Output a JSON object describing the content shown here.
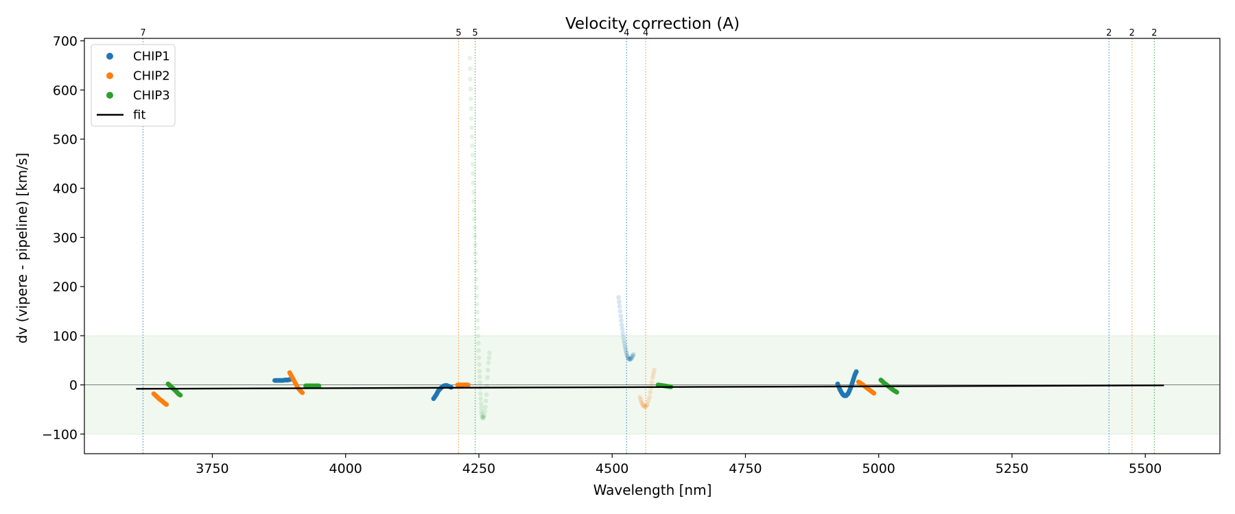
{
  "chart_data": {
    "type": "scatter",
    "title": "Velocity correction (A)",
    "xlabel": "Wavelength [nm]",
    "ylabel": "dv (vipere - pipeline) [km/s]",
    "xlim": [
      3510,
      5640
    ],
    "ylim": [
      -140,
      705
    ],
    "xticks": [
      3750,
      4000,
      4250,
      4500,
      4750,
      5000,
      5250,
      5500
    ],
    "yticks": [
      -100,
      0,
      100,
      200,
      300,
      400,
      500,
      600,
      700
    ],
    "yticklabels": [
      "−100",
      "0",
      "100",
      "200",
      "300",
      "400",
      "500",
      "600",
      "700"
    ],
    "grid": false,
    "legend_position": "top-left",
    "band": {
      "y": [
        -100,
        100
      ],
      "color": "#2ca02c"
    },
    "zero_line": 0,
    "colors": {
      "CHIP1": "#1f77b4",
      "CHIP2": "#ff7f0e",
      "CHIP3": "#2ca02c",
      "fit": "#000000"
    },
    "legend": [
      {
        "label": "CHIP1",
        "kind": "point",
        "color": "#1f77b4"
      },
      {
        "label": "CHIP2",
        "kind": "point",
        "color": "#ff7f0e"
      },
      {
        "label": "CHIP3",
        "kind": "point",
        "color": "#2ca02c"
      },
      {
        "label": "fit",
        "kind": "line",
        "color": "#000000"
      }
    ],
    "vlines": [
      {
        "x": 3620,
        "label": "7",
        "color": "#1f77b4"
      },
      {
        "x": 4212,
        "label": "5",
        "color": "#ff7f0e"
      },
      {
        "x": 4243,
        "label": "5",
        "color": "#2ca02c"
      },
      {
        "x": 4527,
        "label": "4",
        "color": "#1f77b4"
      },
      {
        "x": 4563,
        "label": "4",
        "color": "#ff7f0e"
      },
      {
        "x": 5432,
        "label": "2",
        "color": "#1f77b4"
      },
      {
        "x": 5475,
        "label": "2",
        "color": "#ff7f0e"
      },
      {
        "x": 5517,
        "label": "2",
        "color": "#2ca02c"
      }
    ],
    "fit": {
      "x": [
        3607,
        5535
      ],
      "y": [
        -8,
        -1
      ]
    },
    "series": [
      {
        "name": "CHIP1",
        "segments": [
          {
            "alpha": 1,
            "points": [
              [
                3867,
                9
              ],
              [
                3872,
                9
              ],
              [
                3877,
                9
              ],
              [
                3882,
                9
              ],
              [
                3887,
                10
              ],
              [
                3892,
                10
              ],
              [
                3896,
                11
              ]
            ]
          },
          {
            "alpha": 1,
            "points": [
              [
                4165,
                -28
              ],
              [
                4170,
                -20
              ],
              [
                4174,
                -12
              ],
              [
                4179,
                -6
              ],
              [
                4184,
                -2
              ],
              [
                4189,
                -1
              ],
              [
                4194,
                -3
              ],
              [
                4198,
                -5
              ]
            ]
          },
          {
            "alpha": 0.18,
            "points": [
              [
                4512,
                178
              ],
              [
                4514,
                160
              ],
              [
                4516,
                140
              ],
              [
                4518,
                122
              ],
              [
                4520,
                105
              ],
              [
                4522,
                90
              ],
              [
                4524,
                78
              ],
              [
                4526,
                68
              ],
              [
                4528,
                60
              ],
              [
                4530,
                55
              ],
              [
                4532,
                52
              ],
              [
                4534,
                52
              ],
              [
                4536,
                54
              ],
              [
                4538,
                58
              ],
              [
                4540,
                62
              ]
            ]
          },
          {
            "alpha": 1,
            "points": [
              [
                4923,
                2
              ],
              [
                4927,
                -9
              ],
              [
                4931,
                -17
              ],
              [
                4935,
                -22
              ],
              [
                4939,
                -22
              ],
              [
                4943,
                -17
              ],
              [
                4947,
                -7
              ],
              [
                4951,
                6
              ],
              [
                4955,
                20
              ],
              [
                4958,
                27
              ]
            ]
          }
        ]
      },
      {
        "name": "CHIP2",
        "segments": [
          {
            "alpha": 1,
            "points": [
              [
                3640,
                -18
              ],
              [
                3644,
                -22
              ],
              [
                3648,
                -26
              ],
              [
                3652,
                -30
              ],
              [
                3656,
                -33
              ],
              [
                3660,
                -37
              ],
              [
                3664,
                -40
              ]
            ]
          },
          {
            "alpha": 1,
            "points": [
              [
                3895,
                25
              ],
              [
                3900,
                15
              ],
              [
                3905,
                5
              ],
              [
                3910,
                -5
              ],
              [
                3915,
                -12
              ],
              [
                3919,
                -16
              ]
            ]
          },
          {
            "alpha": 1,
            "points": [
              [
                4210,
                0
              ],
              [
                4215,
                0
              ],
              [
                4220,
                0
              ],
              [
                4225,
                0
              ],
              [
                4230,
                0
              ]
            ]
          },
          {
            "alpha": 0.2,
            "points": [
              [
                4552,
                -25
              ],
              [
                4555,
                -35
              ],
              [
                4558,
                -42
              ],
              [
                4562,
                -45
              ],
              [
                4566,
                -40
              ],
              [
                4570,
                -25
              ],
              [
                4573,
                -5
              ],
              [
                4576,
                15
              ],
              [
                4579,
                30
              ]
            ]
          },
          {
            "alpha": 1,
            "points": [
              [
                4962,
                6
              ],
              [
                4968,
                2
              ],
              [
                4974,
                -3
              ],
              [
                4980,
                -8
              ],
              [
                4986,
                -13
              ],
              [
                4991,
                -17
              ]
            ]
          }
        ]
      },
      {
        "name": "CHIP3",
        "segments": [
          {
            "alpha": 1,
            "points": [
              [
                3667,
                2
              ],
              [
                3672,
                -3
              ],
              [
                3677,
                -8
              ],
              [
                3682,
                -13
              ],
              [
                3686,
                -18
              ],
              [
                3690,
                -21
              ]
            ]
          },
          {
            "alpha": 1,
            "points": [
              [
                3925,
                -2
              ],
              [
                3930,
                -2
              ],
              [
                3935,
                -2
              ],
              [
                3940,
                -2
              ],
              [
                3945,
                -2
              ],
              [
                3950,
                -2
              ]
            ]
          },
          {
            "alpha": 0.12,
            "points": [
              [
                4233,
                665
              ],
              [
                4234,
                622
              ],
              [
                4235,
                582
              ],
              [
                4236,
                542
              ],
              [
                4237,
                505
              ],
              [
                4238,
                468
              ],
              [
                4239,
                430
              ],
              [
                4240,
                392
              ],
              [
                4241,
                355
              ],
              [
                4242,
                320
              ],
              [
                4243,
                285
              ],
              [
                4244,
                250
              ],
              [
                4245,
                215
              ],
              [
                4246,
                180
              ],
              [
                4247,
                148
              ],
              [
                4248,
                115
              ],
              [
                4249,
                85
              ],
              [
                4250,
                55
              ],
              [
                4251,
                28
              ],
              [
                4252,
                5
              ],
              [
                4253,
                -18
              ],
              [
                4254,
                -38
              ],
              [
                4255,
                -55
              ],
              [
                4256,
                -65
              ],
              [
                4258,
                -68
              ],
              [
                4260,
                -62
              ],
              [
                4262,
                -45
              ],
              [
                4264,
                -20
              ],
              [
                4266,
                15
              ],
              [
                4268,
                45
              ],
              [
                4270,
                65
              ]
            ]
          },
          {
            "alpha": 1,
            "points": [
              [
                4586,
                0
              ],
              [
                4592,
                -1
              ],
              [
                4598,
                -2
              ],
              [
                4604,
                -3
              ],
              [
                4610,
                -4
              ]
            ]
          },
          {
            "alpha": 1,
            "points": [
              [
                5004,
                10
              ],
              [
                5010,
                4
              ],
              [
                5016,
                -1
              ],
              [
                5022,
                -6
              ],
              [
                5028,
                -11
              ],
              [
                5034,
                -15
              ]
            ]
          }
        ]
      }
    ]
  }
}
